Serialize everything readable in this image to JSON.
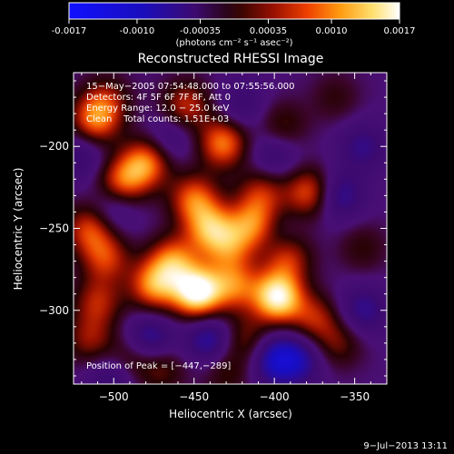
{
  "colorbar": {
    "ticks": [
      "-0.0017",
      "-0.0010",
      "-0.00035",
      "0.00035",
      "0.0010",
      "0.0017"
    ],
    "unit_label": "(photons cm⁻² s⁻¹ asec⁻²)",
    "range": [
      -0.0017,
      0.0017
    ]
  },
  "chart_data": {
    "type": "heatmap",
    "title": "Reconstructed RHESSI Image",
    "xlabel": "Heliocentric X (arcsec)",
    "ylabel": "Heliocentric Y (arcsec)",
    "xlim": [
      -525,
      -330
    ],
    "ylim": [
      -345,
      -155
    ],
    "x_ticks": [
      -500,
      -450,
      -400,
      -350
    ],
    "x_tick_labels": [
      "−500",
      "−450",
      "−400",
      "−350"
    ],
    "y_ticks": [
      -300,
      -250,
      -200
    ],
    "y_tick_labels": [
      "−300",
      "−250",
      "−200"
    ],
    "annotations": [
      "15−May−2005 07:54:48.000 to 07:55:56.000",
      "Detectors: 4F 5F 6F 7F 8F, Att 0",
      "Energy Range: 12.0 − 25.0 keV",
      "Clean    Total counts: 1.51E+03"
    ],
    "peak_label": "Position of Peak = [−447,−289]",
    "peak": [
      -447,
      -289
    ],
    "blobs": [
      {
        "x": -448,
        "y": -289,
        "v": 1.0
      },
      {
        "x": -398,
        "y": -292,
        "v": 0.93
      },
      {
        "x": -475,
        "y": -285,
        "v": 0.62
      },
      {
        "x": -463,
        "y": -270,
        "v": 0.58
      },
      {
        "x": -425,
        "y": -285,
        "v": 0.52
      },
      {
        "x": -440,
        "y": -250,
        "v": 0.62
      },
      {
        "x": -450,
        "y": -232,
        "v": 0.55
      },
      {
        "x": -413,
        "y": -248,
        "v": 0.58
      },
      {
        "x": -428,
        "y": -262,
        "v": 0.42
      },
      {
        "x": -378,
        "y": -228,
        "v": 0.55
      },
      {
        "x": -392,
        "y": -268,
        "v": 0.45
      },
      {
        "x": -408,
        "y": -228,
        "v": 0.4
      },
      {
        "x": -432,
        "y": -198,
        "v": 0.62
      },
      {
        "x": -480,
        "y": -210,
        "v": 0.62
      },
      {
        "x": -495,
        "y": -222,
        "v": 0.55
      },
      {
        "x": -512,
        "y": -185,
        "v": 0.55
      },
      {
        "x": -515,
        "y": -250,
        "v": 0.5
      },
      {
        "x": -505,
        "y": -268,
        "v": 0.45
      },
      {
        "x": -510,
        "y": -295,
        "v": 0.4
      },
      {
        "x": -515,
        "y": -318,
        "v": 0.35
      },
      {
        "x": -375,
        "y": -305,
        "v": 0.4
      },
      {
        "x": -360,
        "y": -320,
        "v": 0.3
      },
      {
        "x": -418,
        "y": -318,
        "v": 0.35
      },
      {
        "x": -395,
        "y": -188,
        "v": 0.3
      },
      {
        "x": -455,
        "y": -175,
        "v": 0.45
      },
      {
        "x": -470,
        "y": -335,
        "v": 0.3
      },
      {
        "x": -430,
        "y": -338,
        "v": 0.25
      },
      {
        "x": -490,
        "y": -330,
        "v": 0.35
      },
      {
        "x": -345,
        "y": -262,
        "v": 0.22
      },
      {
        "x": -362,
        "y": -170,
        "v": 0.2
      },
      {
        "x": -505,
        "y": -172,
        "v": 0.35
      },
      {
        "x": -360,
        "y": -230,
        "v": -0.4
      },
      {
        "x": -345,
        "y": -200,
        "v": -0.3
      },
      {
        "x": -345,
        "y": -300,
        "v": -0.35
      },
      {
        "x": -500,
        "y": -238,
        "v": -0.3
      },
      {
        "x": -478,
        "y": -318,
        "v": -0.45
      },
      {
        "x": -440,
        "y": -318,
        "v": -0.45
      },
      {
        "x": -400,
        "y": -330,
        "v": -0.5
      },
      {
        "x": -385,
        "y": -330,
        "v": -0.4
      },
      {
        "x": -500,
        "y": -340,
        "v": -0.35
      },
      {
        "x": -420,
        "y": -175,
        "v": -0.25
      },
      {
        "x": -400,
        "y": -205,
        "v": -0.3
      },
      {
        "x": -520,
        "y": -205,
        "v": -0.3
      },
      {
        "x": -465,
        "y": -195,
        "v": -0.25
      },
      {
        "x": -400,
        "y": -255,
        "v": -0.15
      }
    ]
  },
  "footer": {
    "date": "9−Jul−2013 13:11"
  }
}
